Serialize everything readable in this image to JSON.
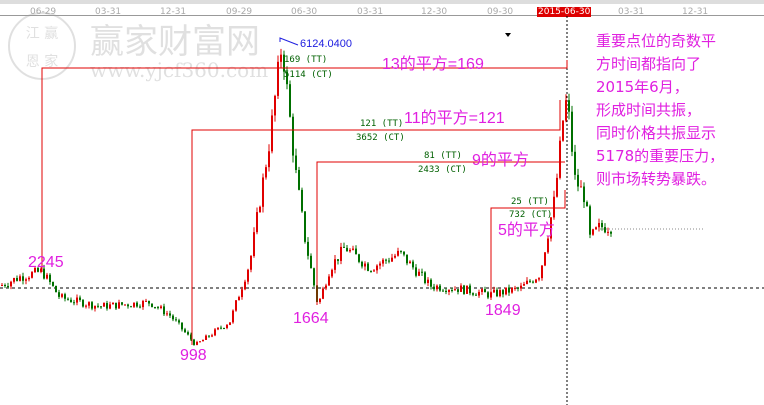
{
  "watermark": {
    "seal": "江恩赢家",
    "site_name": "赢家财富网",
    "url": "www.yjcf360.com"
  },
  "chart_data": {
    "type": "candlestick",
    "x_tick_labels": [
      "06-29",
      "03-31",
      "12-31",
      "09-29",
      "06-30",
      "03-31",
      "12-30",
      "09-30",
      "2015-06-30",
      "03-31",
      "12-31"
    ],
    "highlighted_tick": "2015-06-30",
    "key_prices": {
      "start": 2000,
      "p2245": 2245,
      "low998": 998,
      "high6124": 6124.04,
      "low1664": 1664,
      "low1849": 1849,
      "p5178": 5178,
      "end": 3000
    },
    "price_path": [
      [
        0,
        2000
      ],
      [
        20,
        2150
      ],
      [
        42,
        2245
      ],
      [
        60,
        1800
      ],
      [
        100,
        1650
      ],
      [
        150,
        1720
      ],
      [
        170,
        1500
      ],
      [
        196,
        998
      ],
      [
        230,
        1400
      ],
      [
        250,
        2400
      ],
      [
        270,
        4500
      ],
      [
        282,
        6124
      ],
      [
        295,
        4000
      ],
      [
        305,
        2800
      ],
      [
        318,
        1664
      ],
      [
        330,
        2300
      ],
      [
        345,
        2650
      ],
      [
        370,
        2300
      ],
      [
        400,
        2550
      ],
      [
        430,
        2000
      ],
      [
        460,
        1950
      ],
      [
        490,
        1849
      ],
      [
        520,
        1950
      ],
      [
        540,
        2200
      ],
      [
        555,
        3500
      ],
      [
        563,
        4800
      ],
      [
        567,
        5178
      ],
      [
        575,
        3800
      ],
      [
        585,
        3500
      ],
      [
        590,
        2800
      ],
      [
        600,
        3000
      ],
      [
        612,
        3000
      ]
    ],
    "high_label": "6124.0400",
    "point_labels": [
      "2245",
      "998",
      "1664",
      "1849"
    ],
    "levels": [
      {
        "tt": "169 (TT)",
        "ct": "5114 (CT)",
        "title": "13的平方=169"
      },
      {
        "tt": "121 (TT)",
        "ct": "3652 (CT)",
        "title": "11的平方=121"
      },
      {
        "tt": "81 (TT)",
        "ct": "2433 (CT)",
        "title": "9的平方"
      },
      {
        "tt": "25 (TT)",
        "ct": "732 (CT)",
        "title": "5的平方"
      }
    ],
    "colors": {
      "up": "#e00000",
      "down": "#007000",
      "level_line": "#e00000",
      "annotation": "#e020e0"
    }
  },
  "note": [
    "重要点位的奇数平",
    "方时间都指向了",
    "2015年6月，",
    "形成时间共振，",
    "同时价格共振显示",
    "5178的重要压力，",
    "则市场转势暴跌。"
  ]
}
